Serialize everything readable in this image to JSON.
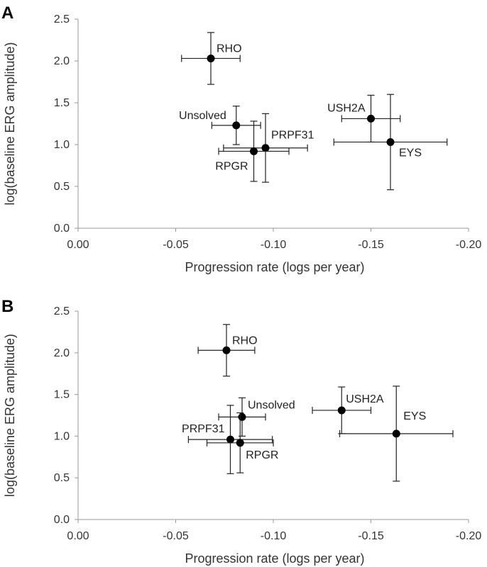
{
  "chart_data": [
    {
      "panel": "A",
      "type": "scatter",
      "title": "",
      "xlabel": "Progression rate (logs per year)",
      "ylabel": "log(baseline ERG amplitude)",
      "xlim": [
        0.0,
        -0.2
      ],
      "ylim": [
        0.0,
        2.5
      ],
      "xticks": [
        "0.00",
        "-0.05",
        "-0.10",
        "-0.15",
        "-0.20"
      ],
      "yticks": [
        "0.0",
        "0.5",
        "1.0",
        "1.5",
        "2.0",
        "2.5"
      ],
      "grid": false,
      "points": [
        {
          "label": "RHO",
          "x": -0.068,
          "y": 2.03,
          "x_err": 0.015,
          "y_err": 0.31
        },
        {
          "label": "Unsolved",
          "x": -0.081,
          "y": 1.23,
          "x_err": 0.0125,
          "y_err": 0.23
        },
        {
          "label": "PRPF31",
          "x": -0.096,
          "y": 0.96,
          "x_err": 0.0215,
          "y_err": 0.41
        },
        {
          "label": "RPGR",
          "x": -0.09,
          "y": 0.92,
          "x_err": 0.018,
          "y_err": 0.36
        },
        {
          "label": "USH2A",
          "x": -0.15,
          "y": 1.31,
          "x_err": 0.015,
          "y_err": 0.28
        },
        {
          "label": "EYS",
          "x": -0.16,
          "y": 1.03,
          "x_err": 0.029,
          "y_err": 0.57
        }
      ]
    },
    {
      "panel": "B",
      "type": "scatter",
      "title": "",
      "xlabel": "Progression rate (logs per year)",
      "ylabel": "log(baseline ERG amplitude)",
      "xlim": [
        0.0,
        -0.2
      ],
      "ylim": [
        0.0,
        2.5
      ],
      "xticks": [
        "0.00",
        "-0.05",
        "-0.10",
        "-0.15",
        "-0.20"
      ],
      "yticks": [
        "0.0",
        "0.5",
        "1.0",
        "1.5",
        "2.0",
        "2.5"
      ],
      "grid": false,
      "points": [
        {
          "label": "RHO",
          "x": -0.076,
          "y": 2.03,
          "x_err": 0.0145,
          "y_err": 0.31
        },
        {
          "label": "Unsolved",
          "x": -0.084,
          "y": 1.23,
          "x_err": 0.012,
          "y_err": 0.23
        },
        {
          "label": "PRPF31",
          "x": -0.078,
          "y": 0.96,
          "x_err": 0.0215,
          "y_err": 0.41
        },
        {
          "label": "RPGR",
          "x": -0.083,
          "y": 0.92,
          "x_err": 0.017,
          "y_err": 0.36
        },
        {
          "label": "USH2A",
          "x": -0.135,
          "y": 1.31,
          "x_err": 0.015,
          "y_err": 0.28
        },
        {
          "label": "EYS",
          "x": -0.163,
          "y": 1.03,
          "x_err": 0.029,
          "y_err": 0.57
        }
      ]
    }
  ]
}
